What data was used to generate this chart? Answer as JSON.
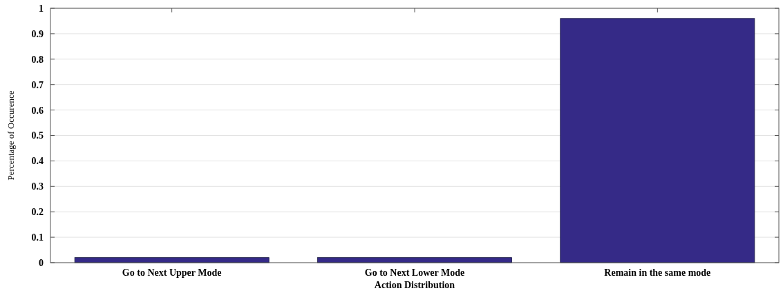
{
  "chart_data": {
    "type": "bar",
    "xlabel": "Action Distribution",
    "ylabel": "Percentage of Occurence",
    "categories": [
      "Go to Next Upper Mode",
      "Go to Next Lower Mode",
      "Remain in the same mode"
    ],
    "values": [
      0.02,
      0.02,
      0.96
    ],
    "color": "#352a87",
    "ylim": [
      0,
      1
    ],
    "yticks": [
      0,
      0.1,
      0.2,
      0.3,
      0.4,
      0.5,
      0.6,
      0.7,
      0.8,
      0.9,
      1
    ],
    "grid": "y"
  }
}
